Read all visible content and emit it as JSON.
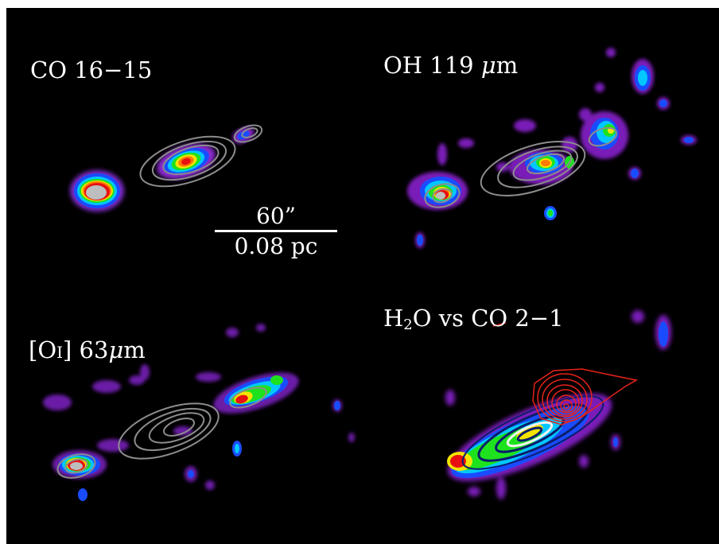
{
  "panels": {
    "top_left": {
      "label": "CO 16−15"
    },
    "top_right": {
      "label_main": "OH 119 ",
      "label_mu": "μ",
      "label_unit": "m"
    },
    "bottom_left": {
      "label_open": "[O",
      "label_ion": "I",
      "label_close": "] 63",
      "label_mu": "μ",
      "label_unit": "m"
    },
    "bottom_right": {
      "label_h": "H",
      "label_sub": "2",
      "label_rest": "O vs CO 2−1"
    }
  },
  "scale_bar": {
    "angular": "60”",
    "physical": "0.08 pc"
  },
  "colors": {
    "background": "#000000",
    "contour_gray": "#8c8c8c",
    "contour_red": "#e8231a",
    "contour_blue_dark": "#0b1d6b",
    "contour_white": "#f2f2f2"
  }
}
